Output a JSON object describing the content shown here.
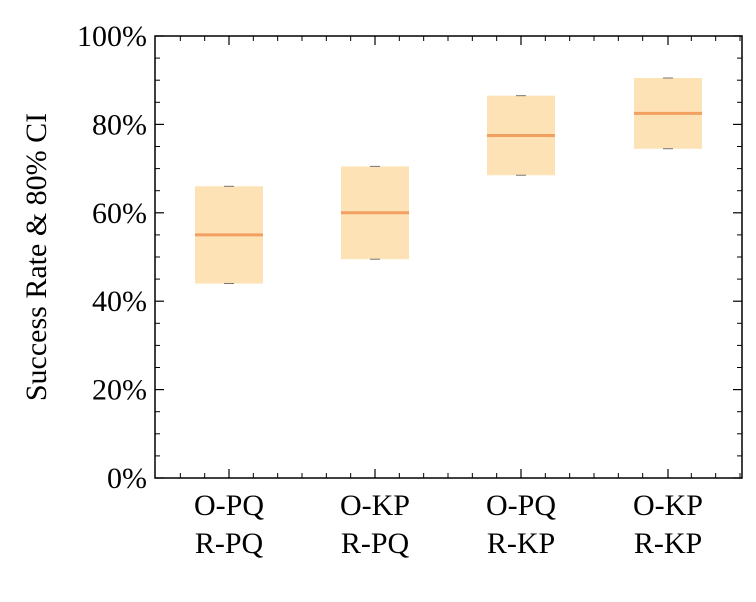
{
  "chart_data": {
    "type": "box",
    "title": "",
    "xlabel": "",
    "ylabel": "Success Rate & 80% CI",
    "ylim": [
      0,
      100
    ],
    "y_ticks": [
      0,
      20,
      40,
      60,
      80,
      100
    ],
    "y_tick_labels": [
      "0%",
      "20%",
      "40%",
      "60%",
      "80%",
      "100%"
    ],
    "categories": [
      [
        "O-PQ",
        "R-PQ"
      ],
      [
        "O-KP",
        "R-PQ"
      ],
      [
        "O-PQ",
        "R-KP"
      ],
      [
        "O-KP",
        "R-KP"
      ]
    ],
    "boxes": [
      {
        "low": 44,
        "median": 55,
        "high": 66
      },
      {
        "low": 49.5,
        "median": 60,
        "high": 70.5
      },
      {
        "low": 68.5,
        "median": 77.5,
        "high": 86.5
      },
      {
        "low": 74.5,
        "median": 82.5,
        "high": 90.5
      }
    ],
    "grid": false,
    "colors": {
      "box_fill": "#fde2b5",
      "median_line": "#f2a061",
      "axis": "#000000"
    }
  }
}
